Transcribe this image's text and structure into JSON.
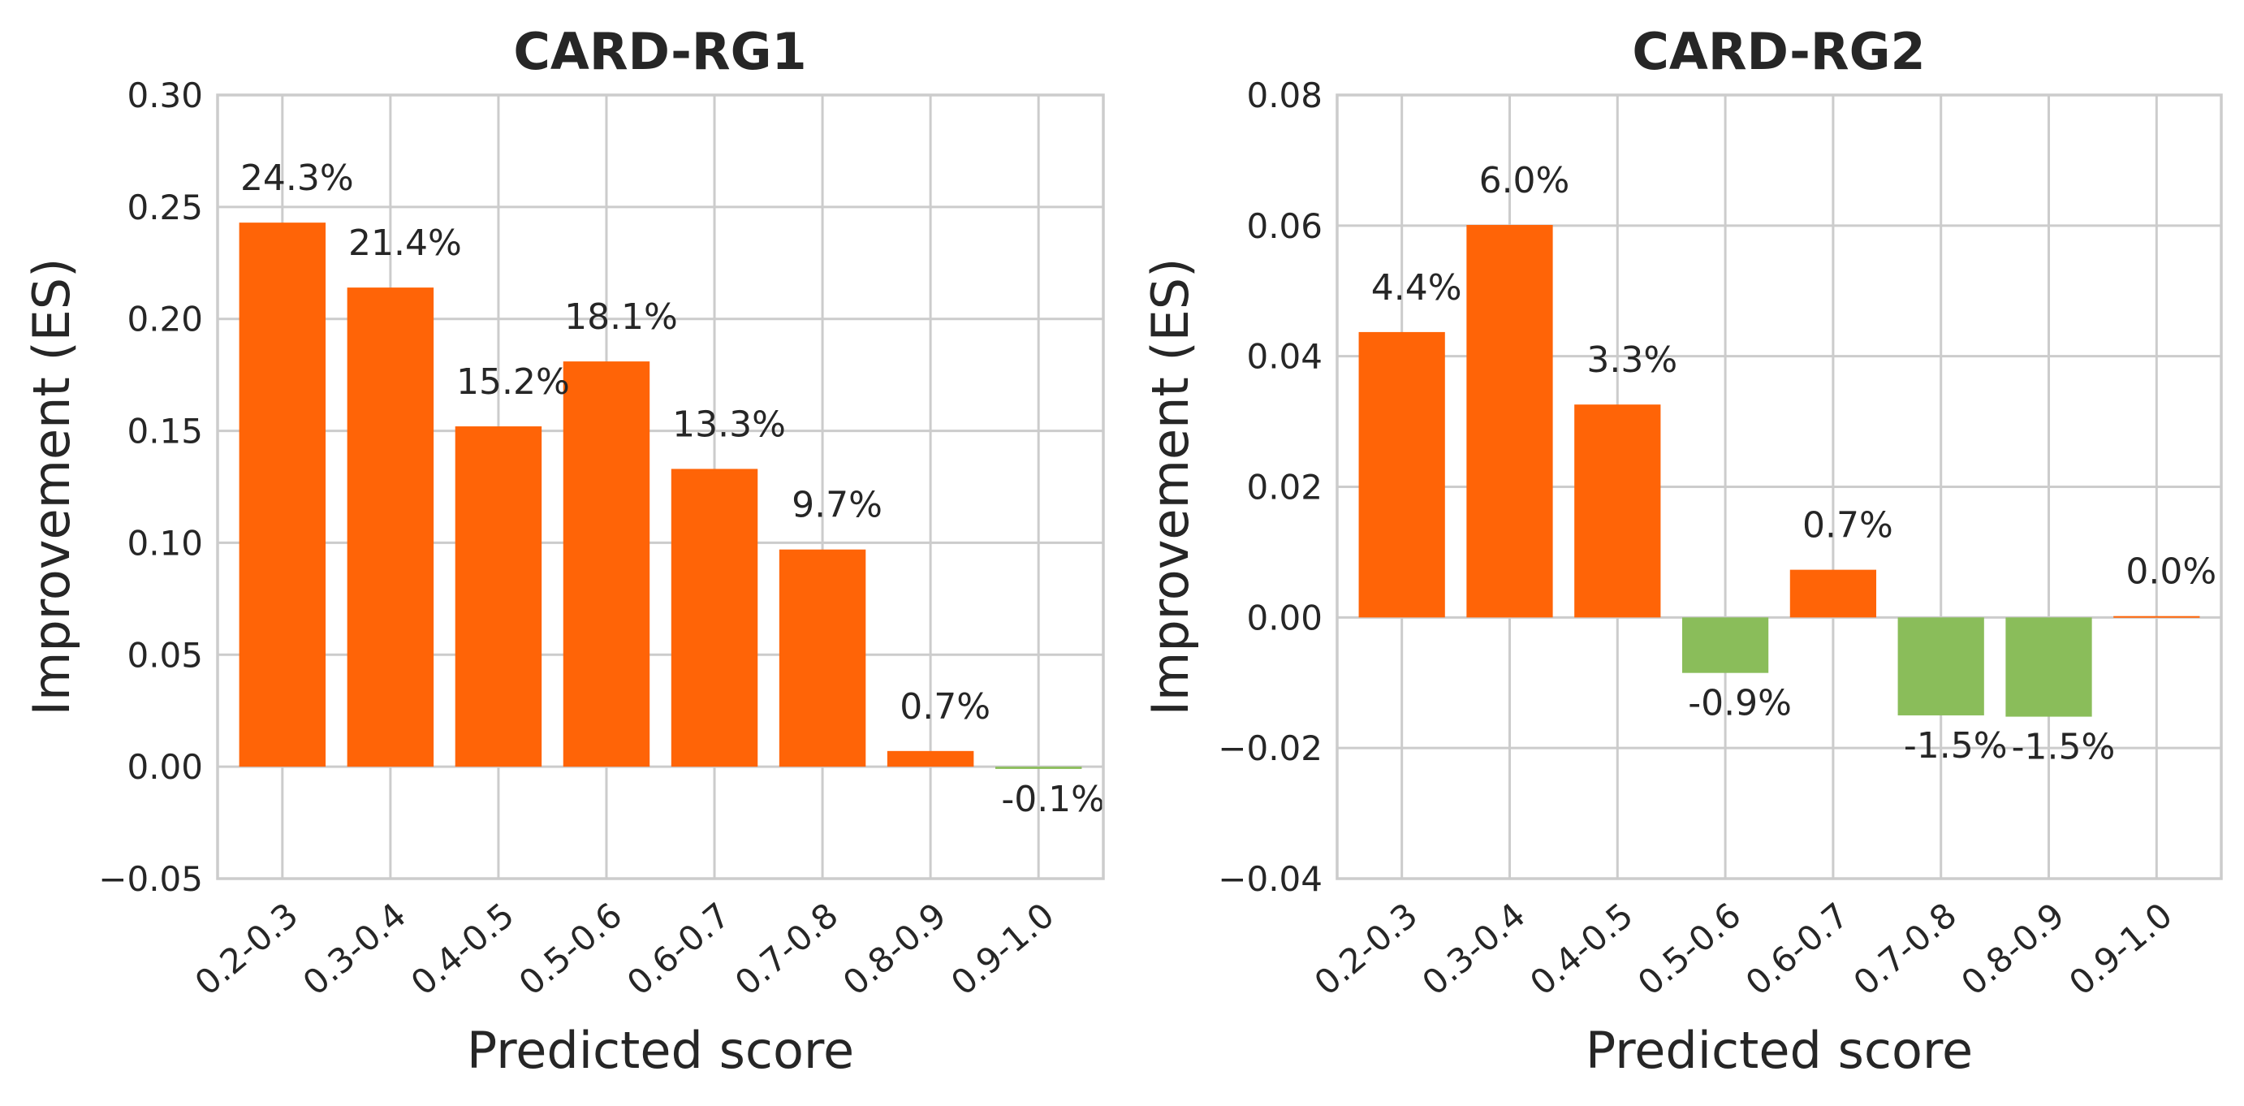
{
  "chart_data": [
    {
      "type": "bar",
      "title": "CARD-RG1",
      "xlabel": "Predicted score",
      "ylabel": "Improvement (ES)",
      "categories": [
        "0.2-0.3",
        "0.3-0.4",
        "0.4-0.5",
        "0.5-0.6",
        "0.6-0.7",
        "0.7-0.8",
        "0.8-0.9",
        "0.9-1.0"
      ],
      "values": [
        0.243,
        0.214,
        0.152,
        0.181,
        0.133,
        0.097,
        0.007,
        -0.001
      ],
      "data_labels": [
        "24.3%",
        "21.4%",
        "15.2%",
        "18.1%",
        "13.3%",
        "9.7%",
        "0.7%",
        "-0.1%"
      ],
      "ylim": [
        -0.05,
        0.3
      ],
      "yticks": [
        -0.05,
        0.0,
        0.05,
        0.1,
        0.15,
        0.2,
        0.25,
        0.3
      ],
      "ytick_labels": [
        "−0.05",
        "0.00",
        "0.05",
        "0.10",
        "0.15",
        "0.20",
        "0.25",
        "0.30"
      ],
      "grid": true,
      "colors": {
        "positive": "#ff6407",
        "negative": "#8abd5a"
      }
    },
    {
      "type": "bar",
      "title": "CARD-RG2",
      "xlabel": "Predicted score",
      "ylabel": "Improvement (ES)",
      "categories": [
        "0.2-0.3",
        "0.3-0.4",
        "0.4-0.5",
        "0.5-0.6",
        "0.6-0.7",
        "0.7-0.8",
        "0.8-0.9",
        "0.9-1.0"
      ],
      "values": [
        0.0437,
        0.0601,
        0.0326,
        -0.0085,
        0.0073,
        -0.015,
        -0.0152,
        0.0002
      ],
      "data_labels": [
        "4.4%",
        "6.0%",
        "3.3%",
        "-0.9%",
        "0.7%",
        "-1.5%",
        "-1.5%",
        "0.0%"
      ],
      "ylim": [
        -0.04,
        0.08
      ],
      "yticks": [
        -0.04,
        -0.02,
        0.0,
        0.02,
        0.04,
        0.06,
        0.08
      ],
      "ytick_labels": [
        "−0.04",
        "−0.02",
        "0.00",
        "0.02",
        "0.04",
        "0.06",
        "0.08"
      ],
      "grid": true,
      "colors": {
        "positive": "#ff6407",
        "negative": "#8abd5a"
      }
    }
  ]
}
